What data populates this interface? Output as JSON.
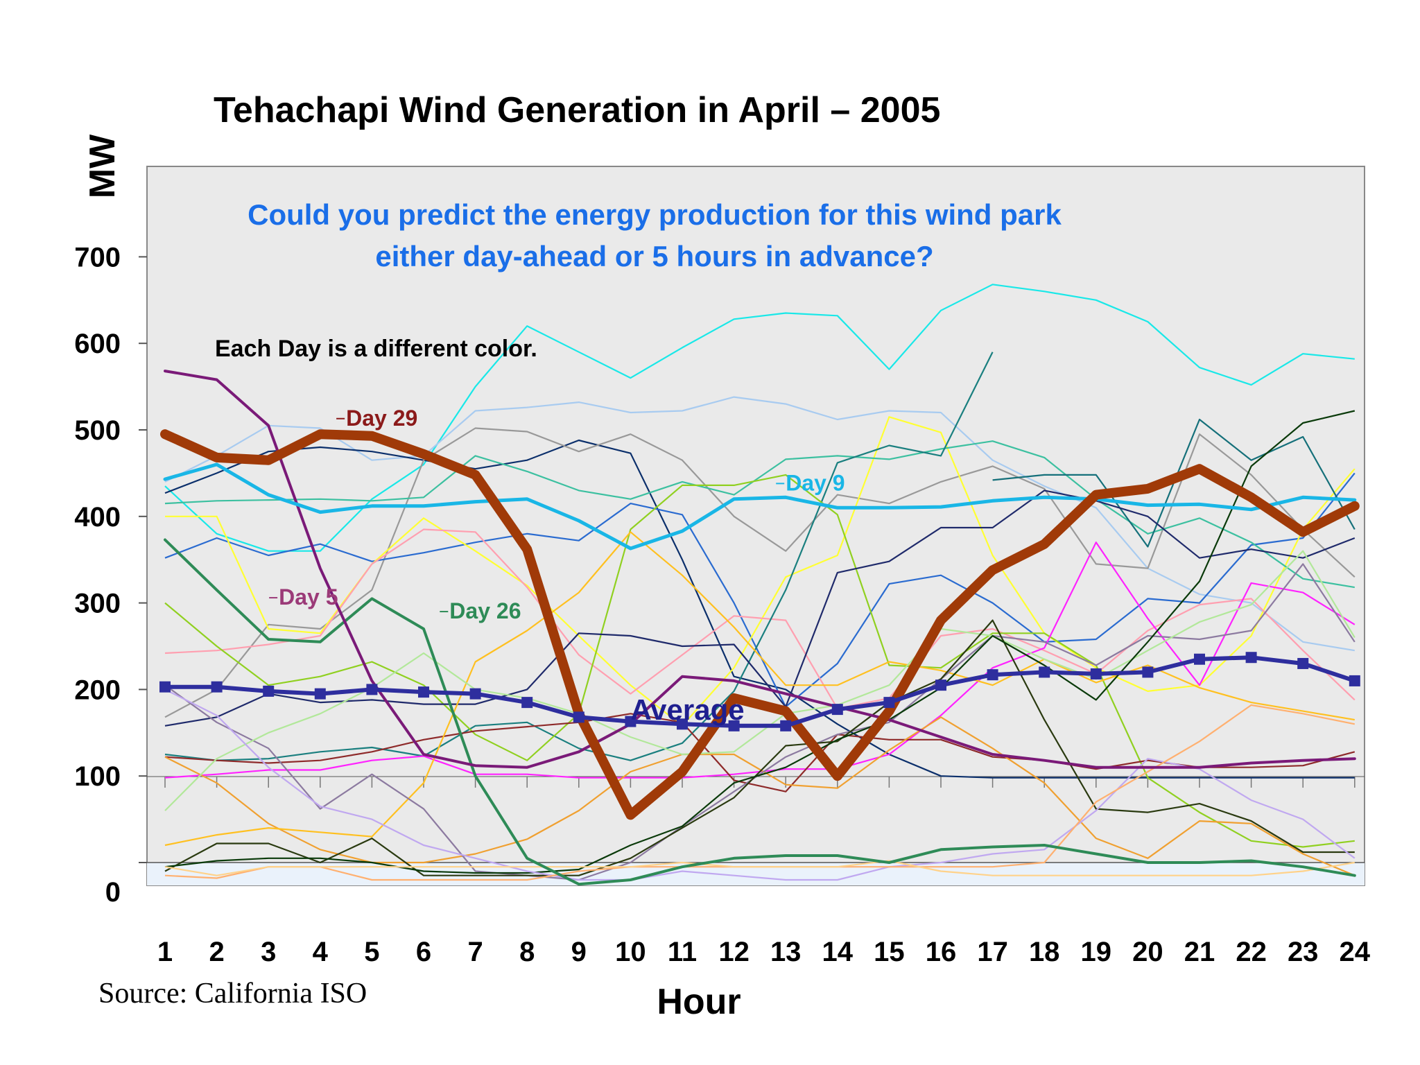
{
  "chart_data": {
    "type": "line",
    "title": "Tehachapi Wind Generation in April – 2005",
    "xlabel": "Hour",
    "ylabel": "MW",
    "x": [
      1,
      2,
      3,
      4,
      5,
      6,
      7,
      8,
      9,
      10,
      11,
      12,
      13,
      14,
      15,
      16,
      17,
      18,
      19,
      20,
      21,
      22,
      23,
      24
    ],
    "ylim": [
      -25,
      800
    ],
    "yticks": [
      0,
      100,
      200,
      300,
      400,
      500,
      600,
      700
    ],
    "ytick_labels": [
      "0",
      "100",
      "200",
      "300",
      "400",
      "500",
      "600",
      "700"
    ],
    "grid": false,
    "question_line1": "Could you predict the energy production for this wind park",
    "question_line2": "either day-ahead or 5 hours in advance?",
    "note": "Each Day is a different color.",
    "source": "Source: California ISO",
    "average_label": "Average",
    "highlight_labels": [
      {
        "text": "Day 29",
        "at": [
          4.5,
          505
        ],
        "color": "#8b1a1a"
      },
      {
        "text": "Day 9",
        "at": [
          13.0,
          430
        ],
        "color": "#19b6e6"
      },
      {
        "text": "Day 5",
        "at": [
          3.2,
          298
        ],
        "color": "#9b3a78"
      },
      {
        "text": "Day 26",
        "at": [
          6.5,
          282
        ],
        "color": "#2e8b57"
      }
    ],
    "highlight_series": [
      {
        "label": "Day 29",
        "color": "#a03a08",
        "width": 14,
        "values": [
          495,
          468,
          465,
          495,
          493,
          472,
          448,
          362,
          172,
          55,
          105,
          190,
          175,
          100,
          175,
          280,
          338,
          368,
          425,
          432,
          455,
          422,
          382,
          412
        ]
      },
      {
        "label": "Day 9",
        "color": "#19b6e6",
        "width": 5,
        "values": [
          443,
          460,
          425,
          405,
          412,
          412,
          417,
          420,
          395,
          363,
          383,
          420,
          422,
          410,
          410,
          411,
          418,
          422,
          420,
          413,
          414,
          408,
          422,
          419
        ]
      },
      {
        "label": "Day 5",
        "color": "#7a1a78",
        "width": 4,
        "values": [
          568,
          558,
          505,
          340,
          210,
          125,
          112,
          110,
          128,
          160,
          215,
          210,
          195,
          180,
          165,
          145,
          125,
          118,
          110,
          110,
          110,
          115,
          118,
          120
        ]
      },
      {
        "label": "Day 26",
        "color": "#2e8b57",
        "width": 4,
        "values": [
          373,
          315,
          258,
          255,
          305,
          270,
          100,
          5,
          -25,
          -20,
          -5,
          5,
          8,
          8,
          0,
          15,
          18,
          20,
          10,
          0,
          0,
          2,
          -5,
          -15
        ]
      },
      {
        "label": "Average",
        "color": "#2e2e9e",
        "width": 6,
        "markers": true,
        "values": [
          203,
          203,
          198,
          195,
          200,
          197,
          195,
          185,
          168,
          163,
          160,
          158,
          158,
          177,
          185,
          205,
          217,
          220,
          218,
          220,
          235,
          237,
          230,
          210
        ]
      }
    ],
    "series": [
      {
        "color": "#19e8e8",
        "values": [
          435,
          380,
          360,
          360,
          420,
          460,
          550,
          620,
          590,
          560,
          595,
          628,
          635,
          632,
          570,
          638,
          668,
          660,
          650,
          625,
          572,
          552,
          588,
          582
        ]
      },
      {
        "color": "#a8cbf0",
        "values": [
          440,
          470,
          505,
          502,
          465,
          470,
          522,
          526,
          532,
          520,
          522,
          538,
          530,
          512,
          522,
          520,
          465,
          435,
          410,
          340,
          310,
          300,
          255,
          245
        ]
      },
      {
        "color": "#0b2f6b",
        "values": [
          427,
          450,
          475,
          480,
          475,
          465,
          455,
          465,
          488,
          473,
          350,
          215,
          200,
          160,
          125,
          100,
          98,
          98,
          98,
          98,
          98,
          98,
          98,
          98
        ]
      },
      {
        "color": "#999999",
        "values": [
          168,
          200,
          275,
          270,
          315,
          465,
          502,
          498,
          475,
          495,
          465,
          400,
          360,
          425,
          415,
          440,
          458,
          432,
          345,
          340,
          495,
          448,
          385,
          330
        ]
      },
      {
        "color": "#2a6bd0",
        "values": [
          352,
          375,
          355,
          368,
          348,
          358,
          370,
          380,
          372,
          415,
          402,
          300,
          180,
          230,
          322,
          332,
          300,
          255,
          258,
          305,
          300,
          367,
          375,
          450
        ]
      },
      {
        "color": "#ffff33",
        "values": [
          400,
          400,
          270,
          265,
          345,
          398,
          360,
          320,
          262,
          205,
          158,
          225,
          330,
          355,
          515,
          497,
          355,
          265,
          225,
          198,
          205,
          262,
          385,
          455
        ]
      },
      {
        "color": "#3cc0a0",
        "values": [
          415,
          418,
          419,
          420,
          418,
          422,
          470,
          452,
          430,
          420,
          440,
          425,
          466,
          470,
          466,
          478,
          487,
          468,
          420,
          380,
          398,
          370,
          328,
          318
        ]
      },
      {
        "color": "#ff9fb0",
        "values": [
          242,
          245,
          252,
          262,
          345,
          385,
          382,
          318,
          240,
          195,
          240,
          285,
          280,
          178,
          190,
          262,
          270,
          245,
          218,
          268,
          298,
          305,
          245,
          188
        ]
      },
      {
        "color": "#1a7f7f",
        "values": [
          125,
          118,
          120,
          128,
          133,
          123,
          158,
          162,
          132,
          118,
          138,
          198,
          315,
          462,
          482,
          470,
          590,
          null,
          null,
          null,
          null,
          null,
          null,
          null
        ]
      },
      {
        "color": "#15707a",
        "values": [
          null,
          null,
          null,
          null,
          null,
          null,
          null,
          null,
          null,
          null,
          null,
          null,
          null,
          null,
          null,
          null,
          442,
          448,
          448,
          365,
          512,
          465,
          492,
          385
        ]
      },
      {
        "color": "#90d020",
        "values": [
          300,
          250,
          205,
          215,
          232,
          205,
          148,
          118,
          172,
          385,
          436,
          436,
          448,
          402,
          228,
          225,
          265,
          265,
          228,
          98,
          58,
          25,
          18,
          25
        ]
      },
      {
        "color": "#ff22ff",
        "values": [
          98,
          102,
          107,
          107,
          118,
          123,
          102,
          102,
          98,
          98,
          98,
          102,
          108,
          108,
          125,
          170,
          225,
          248,
          370,
          282,
          205,
          323,
          312,
          275
        ]
      },
      {
        "color": "#1f2a6b",
        "values": [
          158,
          168,
          195,
          185,
          188,
          183,
          183,
          200,
          265,
          262,
          250,
          252,
          180,
          335,
          348,
          387,
          387,
          430,
          418,
          400,
          352,
          362,
          352,
          375
        ]
      },
      {
        "color": "#8e2a2a",
        "values": [
          122,
          118,
          115,
          118,
          128,
          142,
          152,
          157,
          162,
          172,
          162,
          95,
          82,
          148,
          142,
          142,
          122,
          118,
          108,
          118,
          110,
          110,
          112,
          128
        ]
      },
      {
        "color": "#f0a030",
        "values": [
          122,
          92,
          45,
          15,
          0,
          0,
          10,
          27,
          60,
          105,
          125,
          125,
          90,
          86,
          130,
          168,
          132,
          92,
          28,
          5,
          48,
          45,
          10,
          -15
        ]
      },
      {
        "color": "#ffc020",
        "values": [
          20,
          32,
          40,
          35,
          30,
          92,
          232,
          268,
          312,
          382,
          332,
          272,
          205,
          205,
          232,
          222,
          205,
          235,
          208,
          228,
          202,
          185,
          175,
          165
        ]
      },
      {
        "color": "#8c7aa0",
        "values": [
          205,
          162,
          132,
          62,
          102,
          62,
          -10,
          -15,
          -20,
          0,
          42,
          82,
          122,
          148,
          162,
          212,
          262,
          255,
          228,
          262,
          258,
          268,
          345,
          255
        ]
      },
      {
        "color": "#b2e89a",
        "values": [
          60,
          120,
          150,
          172,
          202,
          242,
          200,
          190,
          172,
          145,
          125,
          128,
          172,
          182,
          205,
          270,
          262,
          235,
          212,
          245,
          278,
          298,
          360,
          260
        ]
      },
      {
        "color": "#2a3a10",
        "values": [
          -10,
          22,
          22,
          0,
          28,
          -15,
          -15,
          -15,
          -15,
          5,
          40,
          75,
          135,
          140,
          185,
          212,
          280,
          165,
          62,
          58,
          68,
          48,
          12,
          12
        ]
      },
      {
        "color": "#0a3a0a",
        "values": [
          -5,
          2,
          5,
          5,
          0,
          -10,
          -12,
          -12,
          -8,
          20,
          42,
          92,
          110,
          142,
          165,
          202,
          262,
          228,
          188,
          255,
          325,
          458,
          508,
          522
        ]
      },
      {
        "color": "#c0a8f0",
        "values": [
          200,
          170,
          110,
          65,
          50,
          20,
          5,
          -10,
          -20,
          -20,
          -10,
          -15,
          -20,
          -20,
          -5,
          0,
          10,
          15,
          60,
          120,
          108,
          72,
          50,
          5
        ]
      },
      {
        "color": "#ffb070",
        "values": [
          -15,
          -18,
          -5,
          -5,
          -20,
          -20,
          -20,
          -20,
          -10,
          -5,
          -5,
          -5,
          -5,
          -5,
          -5,
          -5,
          -5,
          0,
          70,
          105,
          140,
          182,
          172,
          160
        ]
      },
      {
        "color": "#ffd28a",
        "values": [
          -5,
          -15,
          -5,
          -5,
          -5,
          -5,
          -5,
          -5,
          -5,
          -5,
          0,
          -5,
          -5,
          -5,
          2,
          -10,
          -15,
          -15,
          -15,
          -15,
          -15,
          -15,
          -10,
          0
        ]
      }
    ]
  }
}
